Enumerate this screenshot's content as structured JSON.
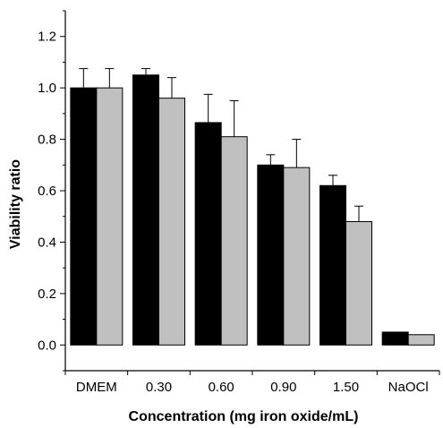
{
  "chart_data": {
    "type": "bar",
    "title": "",
    "xlabel": "Concentration (mg iron oxide/mL)",
    "ylabel": "Viability ratio",
    "categories": [
      "DMEM",
      "0.30",
      "0.60",
      "0.90",
      "1.50",
      "NaOCl"
    ],
    "ylim": [
      -0.1,
      1.3
    ],
    "yticks": [
      "0.0",
      "0.2",
      "0.4",
      "0.6",
      "0.8",
      "1.0",
      "1.2"
    ],
    "legend": "none",
    "grid": false,
    "series": [
      {
        "color": "#000000",
        "values": [
          1.0,
          1.05,
          0.865,
          0.7,
          0.62,
          0.05
        ],
        "errors": [
          0.075,
          0.025,
          0.11,
          0.04,
          0.04,
          0.0
        ]
      },
      {
        "color": "#c0c0c0",
        "values": [
          1.0,
          0.96,
          0.81,
          0.69,
          0.48,
          0.04
        ],
        "errors": [
          0.075,
          0.08,
          0.14,
          0.11,
          0.06,
          0.0
        ]
      }
    ]
  }
}
